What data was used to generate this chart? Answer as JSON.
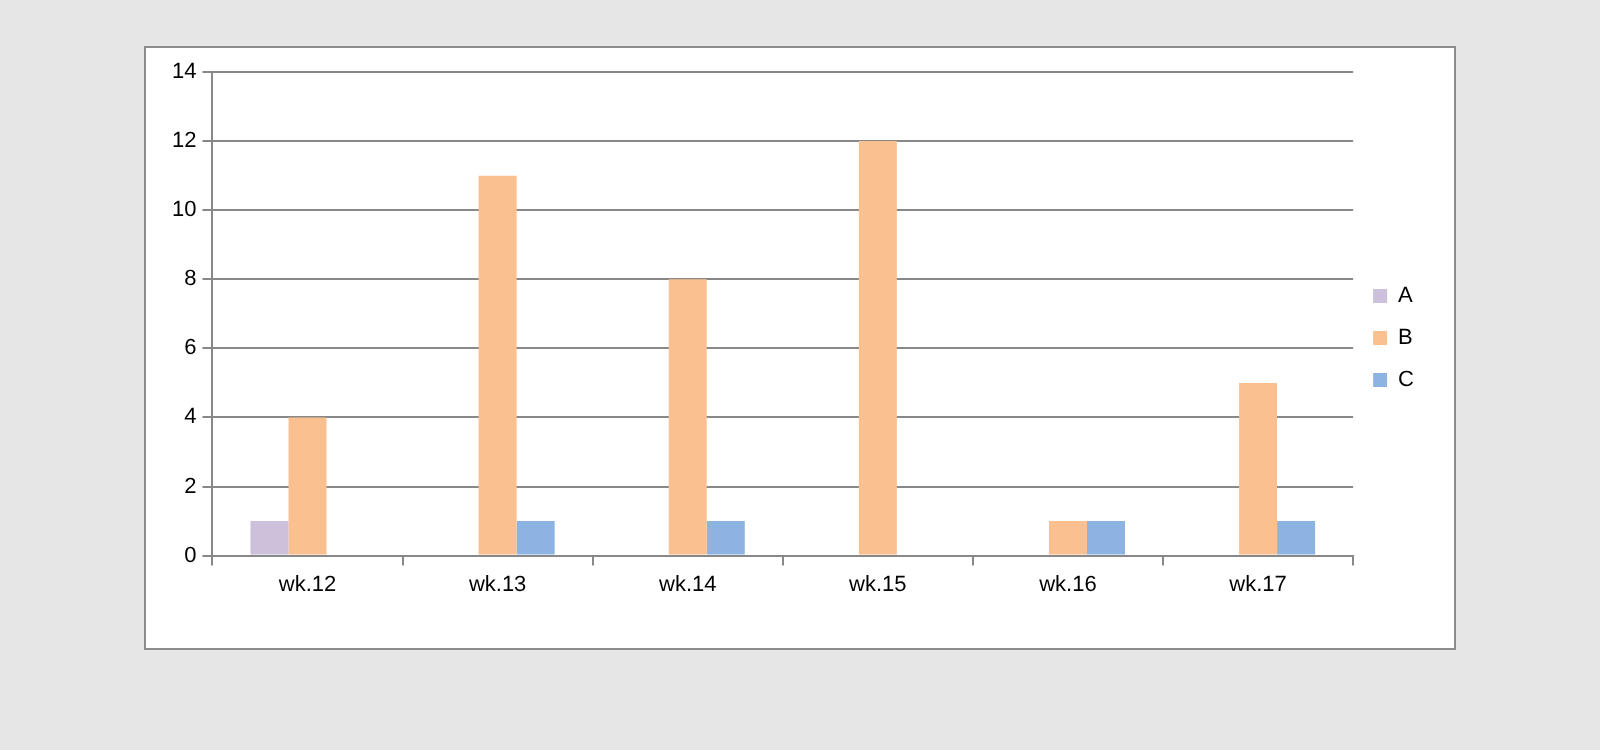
{
  "chart_data": {
    "type": "bar",
    "categories": [
      "wk.12",
      "wk.13",
      "wk.14",
      "wk.15",
      "wk.16",
      "wk.17"
    ],
    "series": [
      {
        "name": "A",
        "color": "#ccc0da",
        "values": [
          1,
          0,
          0,
          0,
          0,
          0
        ]
      },
      {
        "name": "B",
        "color": "#fac090",
        "values": [
          4,
          11,
          8,
          12,
          1,
          5
        ]
      },
      {
        "name": "C",
        "color": "#8db3e2",
        "values": [
          0,
          1,
          1,
          0,
          1,
          1
        ]
      }
    ],
    "ylim": [
      0,
      14
    ],
    "yticks": [
      0,
      2,
      4,
      6,
      8,
      10,
      12,
      14
    ],
    "grid": "y",
    "legend": "right"
  }
}
